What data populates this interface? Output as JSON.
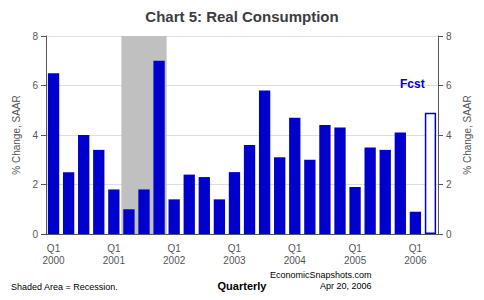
{
  "chart_data": {
    "type": "bar",
    "title": "Chart 5: Real Consumption",
    "ylabel": "% Change, SAAR",
    "y2label": "% Change, SAAR",
    "xlabel": "Quarterly",
    "footer_left": "Shaded Area = Recession.",
    "footer_right": "EconomicSnapshots.com\nApr 20, 2006",
    "categories": [
      "Q1\n2000",
      null,
      null,
      null,
      "Q1\n2001",
      null,
      null,
      null,
      "Q1\n2002",
      null,
      null,
      null,
      "Q1\n2003",
      null,
      null,
      null,
      "Q1\n2004",
      null,
      null,
      null,
      "Q1\n2005",
      null,
      null,
      null,
      "Q1\n2006",
      null
    ],
    "values": [
      6.5,
      2.5,
      4.0,
      3.4,
      1.8,
      1.0,
      1.8,
      7.0,
      1.4,
      2.4,
      2.3,
      1.4,
      2.5,
      3.6,
      5.8,
      3.1,
      4.7,
      3.0,
      4.4,
      4.3,
      1.9,
      3.5,
      3.4,
      4.1,
      0.9,
      4.9
    ],
    "color": "#0000CD",
    "colors": [
      "#0000CD",
      "#0000CD",
      "#0000CD",
      "#0000CD",
      "#0000CD",
      "#0000CD",
      "#0000CD",
      "#0000CD",
      "#0000CD",
      "#0000CD",
      "#0000CD",
      "#0000CD",
      "#0000CD",
      "#0000CD",
      "#0000CD",
      "#0000CD",
      "#0000CD",
      "#0000CD",
      "#0000CD",
      "#0000CD",
      "#0000CD",
      "#0000CD",
      "#0000CD",
      "#0000CD",
      "#0000CD",
      "white"
    ],
    "ylim": [
      0,
      8
    ],
    "yticks": [
      0,
      2,
      4,
      6,
      8
    ],
    "y2lim": [
      0,
      8
    ],
    "y2ticks": [
      0,
      2,
      4,
      6,
      8
    ],
    "grid": true,
    "shaded": {
      "from": 5,
      "to": 7,
      "color": "#C0C0C0"
    },
    "annotations": [
      {
        "text": "Fcst",
        "x": 23.8,
        "y": 5.8,
        "color": "#0000CD"
      }
    ]
  }
}
